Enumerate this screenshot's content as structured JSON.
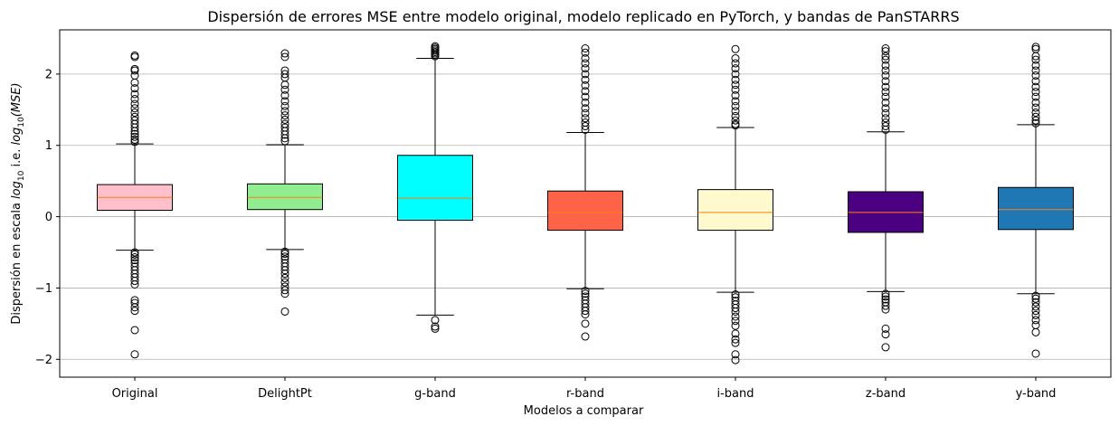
{
  "chart_data": {
    "type": "boxplot",
    "title": "Dispersión de errores MSE entre modelo original, modelo replicado en PyTorch, y bandas de PanSTARRS",
    "xlabel": "Modelos a comparar",
    "ylabel_prefix": "Dispersión en escala ",
    "ylabel_log": "log",
    "ylabel_sub": "10",
    "ylabel_mid": " i.e. ",
    "ylabel_log2": "log",
    "ylabel_sub2": "10",
    "ylabel_arg": "(MSE)",
    "ylim": [
      -2.25,
      2.62
    ],
    "yticks": [
      -2,
      -1,
      0,
      1,
      2
    ],
    "ytick_labels": [
      "−2",
      "−1",
      "0",
      "1",
      "2"
    ],
    "grid": "horizontal",
    "median_color": "#ff7f0e",
    "categories": [
      "Original",
      "DelightPt",
      "g-band",
      "r-band",
      "i-band",
      "z-band",
      "y-band"
    ],
    "boxes": [
      {
        "label": "Original",
        "color": "#ffc0cb",
        "whisker_low": -0.47,
        "q1": 0.09,
        "median": 0.27,
        "q3": 0.45,
        "whisker_high": 1.02,
        "outliers": [
          2.26,
          2.24,
          2.07,
          2.05,
          1.98,
          1.88,
          1.8,
          1.72,
          1.65,
          1.58,
          1.52,
          1.46,
          1.4,
          1.35,
          1.3,
          1.25,
          1.2,
          1.16,
          1.12,
          1.08,
          1.05,
          -0.5,
          -0.53,
          -0.57,
          -0.61,
          -0.65,
          -0.7,
          -0.75,
          -0.8,
          -0.85,
          -0.9,
          -0.95,
          -1.17,
          -1.21,
          -1.27,
          -1.32,
          -1.59,
          -1.93
        ]
      },
      {
        "label": "DelightPt",
        "color": "#90ee90",
        "whisker_low": -0.46,
        "q1": 0.1,
        "median": 0.27,
        "q3": 0.46,
        "whisker_high": 1.01,
        "outliers": [
          2.29,
          2.24,
          2.05,
          2.0,
          1.95,
          1.85,
          1.78,
          1.7,
          1.62,
          1.55,
          1.48,
          1.42,
          1.36,
          1.3,
          1.25,
          1.2,
          1.15,
          1.1,
          1.06,
          -0.49,
          -0.52,
          -0.56,
          -0.6,
          -0.65,
          -0.7,
          -0.75,
          -0.8,
          -0.86,
          -0.92,
          -0.98,
          -1.03,
          -1.08,
          -1.33
        ]
      },
      {
        "label": "g-band",
        "color": "#00ffff",
        "whisker_low": -1.38,
        "q1": -0.05,
        "median": 0.26,
        "q3": 0.86,
        "whisker_high": 2.22,
        "outliers": [
          2.39,
          2.37,
          2.35,
          2.33,
          2.31,
          2.29,
          2.27,
          2.25,
          -1.45,
          -1.54,
          -1.57
        ]
      },
      {
        "label": "r-band",
        "color": "#ff6347",
        "whisker_low": -1.01,
        "q1": -0.19,
        "median": 0.06,
        "q3": 0.36,
        "whisker_high": 1.18,
        "outliers": [
          2.36,
          2.3,
          2.22,
          2.15,
          2.08,
          2.0,
          1.92,
          1.84,
          1.76,
          1.68,
          1.6,
          1.52,
          1.45,
          1.38,
          1.32,
          1.27,
          1.22,
          -1.04,
          -1.08,
          -1.12,
          -1.17,
          -1.22,
          -1.27,
          -1.32,
          -1.37,
          -1.5,
          -1.68
        ]
      },
      {
        "label": "i-band",
        "color": "#fffacd",
        "whisker_low": -1.06,
        "q1": -0.19,
        "median": 0.06,
        "q3": 0.38,
        "whisker_high": 1.25,
        "outliers": [
          2.35,
          2.22,
          2.15,
          2.08,
          2.0,
          1.92,
          1.85,
          1.78,
          1.7,
          1.62,
          1.55,
          1.48,
          1.41,
          1.35,
          1.3,
          1.28,
          -1.09,
          -1.13,
          -1.18,
          -1.23,
          -1.28,
          -1.33,
          -1.4,
          -1.46,
          -1.53,
          -1.64,
          -1.72,
          -1.77,
          -1.93,
          -2.01
        ]
      },
      {
        "label": "z-band",
        "color": "#4b0082",
        "whisker_low": -1.05,
        "q1": -0.22,
        "median": 0.06,
        "q3": 0.35,
        "whisker_high": 1.19,
        "outliers": [
          2.36,
          2.32,
          2.25,
          2.2,
          2.12,
          2.05,
          1.98,
          1.9,
          1.82,
          1.75,
          1.68,
          1.6,
          1.52,
          1.45,
          1.38,
          1.32,
          1.27,
          1.22,
          -1.08,
          -1.12,
          -1.16,
          -1.2,
          -1.25,
          -1.3,
          -1.57,
          -1.65,
          -1.83
        ]
      },
      {
        "label": "y-band",
        "color": "#1f77b4",
        "whisker_low": -1.08,
        "q1": -0.18,
        "median": 0.1,
        "q3": 0.41,
        "whisker_high": 1.29,
        "outliers": [
          2.38,
          2.35,
          2.25,
          2.2,
          2.12,
          2.05,
          1.98,
          1.9,
          1.82,
          1.75,
          1.68,
          1.6,
          1.53,
          1.46,
          1.4,
          1.35,
          1.31,
          -1.11,
          -1.15,
          -1.2,
          -1.26,
          -1.32,
          -1.38,
          -1.45,
          -1.52,
          -1.62,
          -1.92
        ]
      }
    ]
  }
}
